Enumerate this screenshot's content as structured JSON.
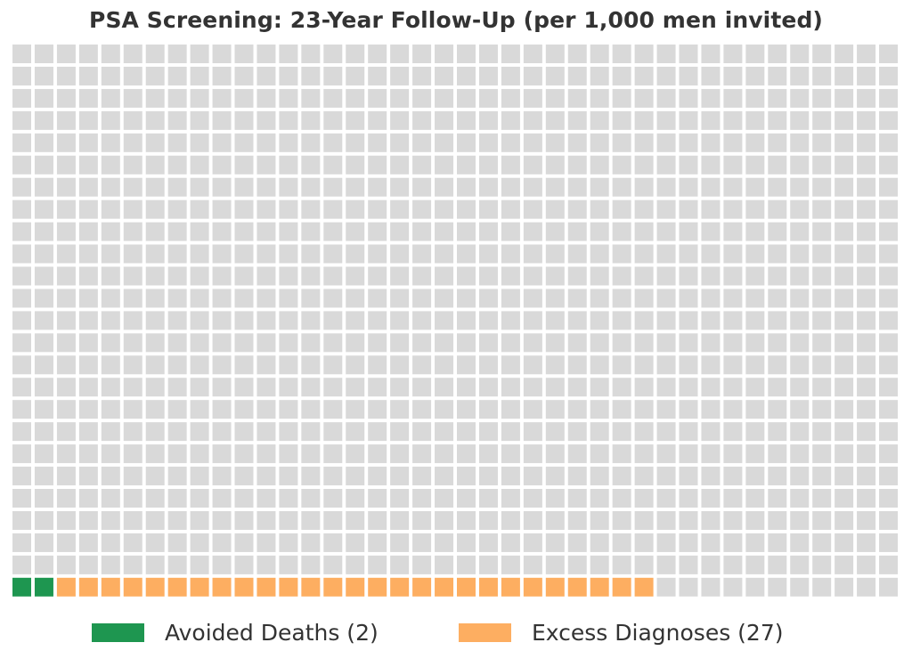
{
  "chart_data": {
    "type": "waffle",
    "title": "PSA Screening: 23-Year Follow-Up (per 1,000 men invited)",
    "total": 1000,
    "grid": {
      "rows": 25,
      "columns": 40
    },
    "fill_order": "bottom-left, left-to-right",
    "legend_position": "bottom-center",
    "categories": [
      {
        "name": "Avoided Deaths",
        "count": 2,
        "label": "Avoided Deaths (2)",
        "color": "#1e9650"
      },
      {
        "name": "Excess Diagnoses",
        "count": 27,
        "label": "Excess Diagnoses (27)",
        "color": "#fdae61"
      }
    ],
    "remainder_color": "#d9d9d9",
    "background_color": "#ffffff"
  }
}
